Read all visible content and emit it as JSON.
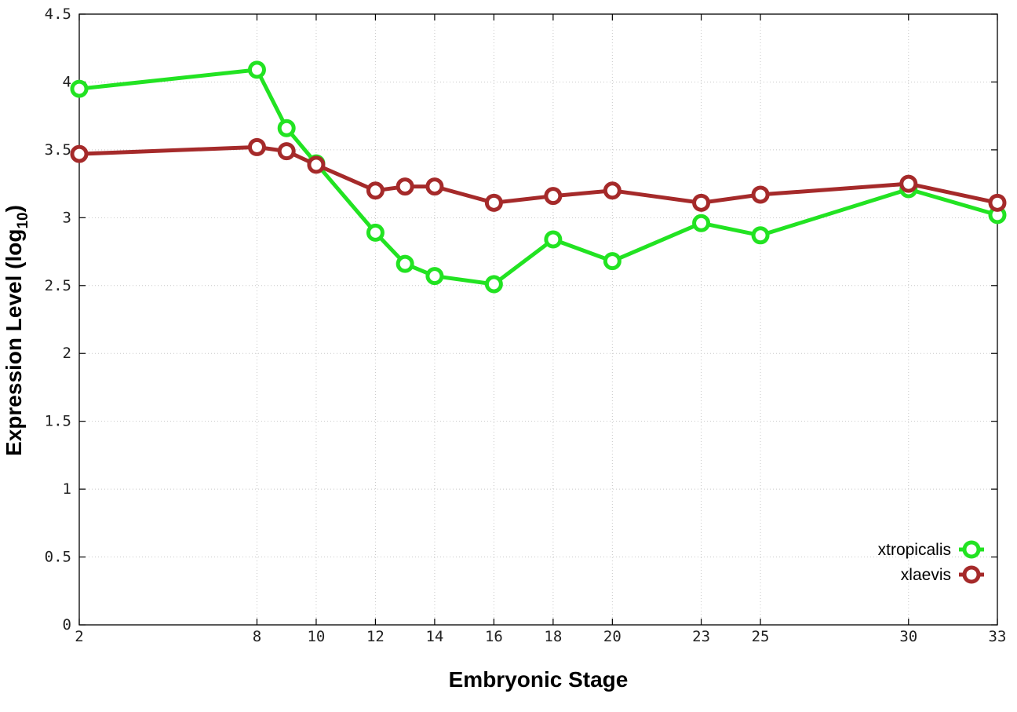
{
  "chart_data": {
    "type": "line",
    "xlabel": "Embryonic Stage",
    "ylabel_main": "Expression Level (log",
    "ylabel_sub": "10",
    "ylabel_close": ")",
    "xlim": [
      2,
      33
    ],
    "ylim": [
      0,
      4.5
    ],
    "x_ticks": [
      2,
      8,
      10,
      12,
      14,
      16,
      18,
      20,
      23,
      25,
      30,
      33
    ],
    "x_tick_labels": [
      "2",
      "8",
      "10",
      "12",
      "14",
      "16",
      "18",
      "20",
      "23",
      "25",
      "30",
      "33"
    ],
    "y_ticks": [
      0,
      0.5,
      1,
      1.5,
      2,
      2.5,
      3,
      3.5,
      4,
      4.5
    ],
    "y_tick_labels": [
      "0",
      "0.5",
      "1",
      "1.5",
      "2",
      "2.5",
      "3",
      "3.5",
      "4",
      "4.5"
    ],
    "grid": true,
    "legend_position": "bottom-right",
    "x": [
      2,
      8,
      9,
      10,
      12,
      13,
      14,
      16,
      18,
      20,
      23,
      25,
      30,
      33
    ],
    "series": [
      {
        "name": "xtropicalis",
        "color": "#22e322",
        "values": [
          3.95,
          4.09,
          3.66,
          3.4,
          2.89,
          2.66,
          2.57,
          2.51,
          2.84,
          2.68,
          2.96,
          2.87,
          3.21,
          3.02
        ]
      },
      {
        "name": "xlaevis",
        "color": "#a52a2a",
        "values": [
          3.47,
          3.52,
          3.49,
          3.39,
          3.2,
          3.23,
          3.23,
          3.11,
          3.16,
          3.2,
          3.11,
          3.17,
          3.25,
          3.11
        ]
      }
    ]
  }
}
